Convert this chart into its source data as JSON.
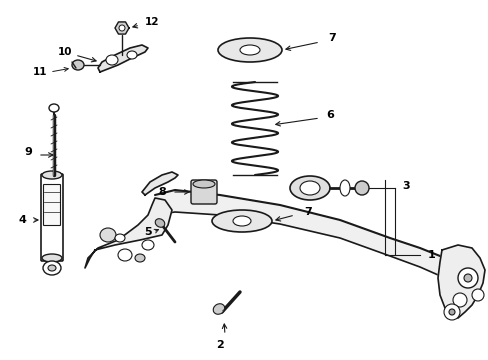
{
  "bg_color": "#ffffff",
  "line_color": "#1a1a1a",
  "label_color": "#000000",
  "figsize": [
    4.89,
    3.6
  ],
  "dpi": 100
}
